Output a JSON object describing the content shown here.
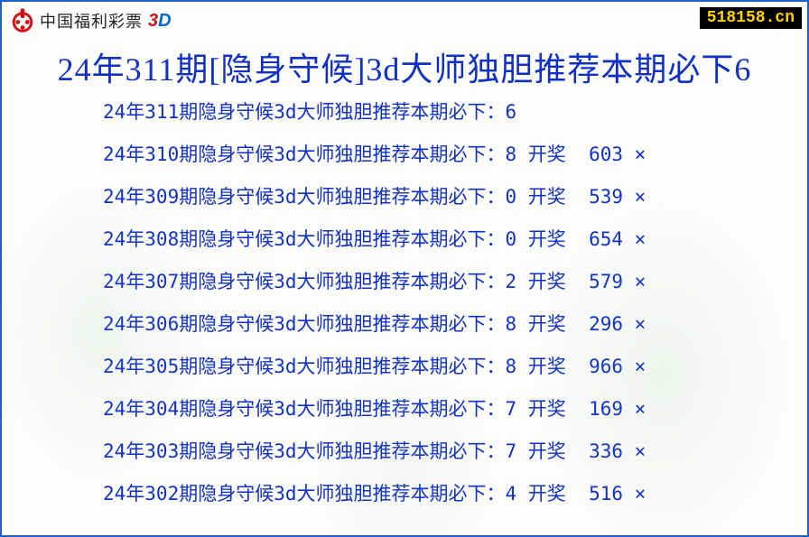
{
  "header": {
    "logo_text": "中国福利彩票",
    "logo_3d_a": "3",
    "logo_3d_b": "D",
    "site_badge": "518158.cn"
  },
  "colors": {
    "border": "#1a5fd6",
    "title": "#1030c8",
    "row_text": "#1030c8",
    "badge_bg": "#000000",
    "badge_fg": "#ffd400",
    "logo_red": "#d4121a",
    "three_color": "#d4121a",
    "d_color": "#0066d6"
  },
  "title": "24年311期[隐身守候]3d大师独胆推荐本期必下6",
  "row_template": {
    "prefix": "24年",
    "mid": "期隐身守候3d大师独胆推荐本期必下：",
    "draw_label": "开奖",
    "miss_mark": "×"
  },
  "rows": [
    {
      "issue": "311",
      "pick": "6",
      "draw": null,
      "mark": null
    },
    {
      "issue": "310",
      "pick": "8",
      "draw": "603",
      "mark": "×"
    },
    {
      "issue": "309",
      "pick": "0",
      "draw": "539",
      "mark": "×"
    },
    {
      "issue": "308",
      "pick": "0",
      "draw": "654",
      "mark": "×"
    },
    {
      "issue": "307",
      "pick": "2",
      "draw": "579",
      "mark": "×"
    },
    {
      "issue": "306",
      "pick": "8",
      "draw": "296",
      "mark": "×"
    },
    {
      "issue": "305",
      "pick": "8",
      "draw": "966",
      "mark": "×"
    },
    {
      "issue": "304",
      "pick": "7",
      "draw": "169",
      "mark": "×"
    },
    {
      "issue": "303",
      "pick": "7",
      "draw": "336",
      "mark": "×"
    },
    {
      "issue": "302",
      "pick": "4",
      "draw": "516",
      "mark": "×"
    }
  ]
}
